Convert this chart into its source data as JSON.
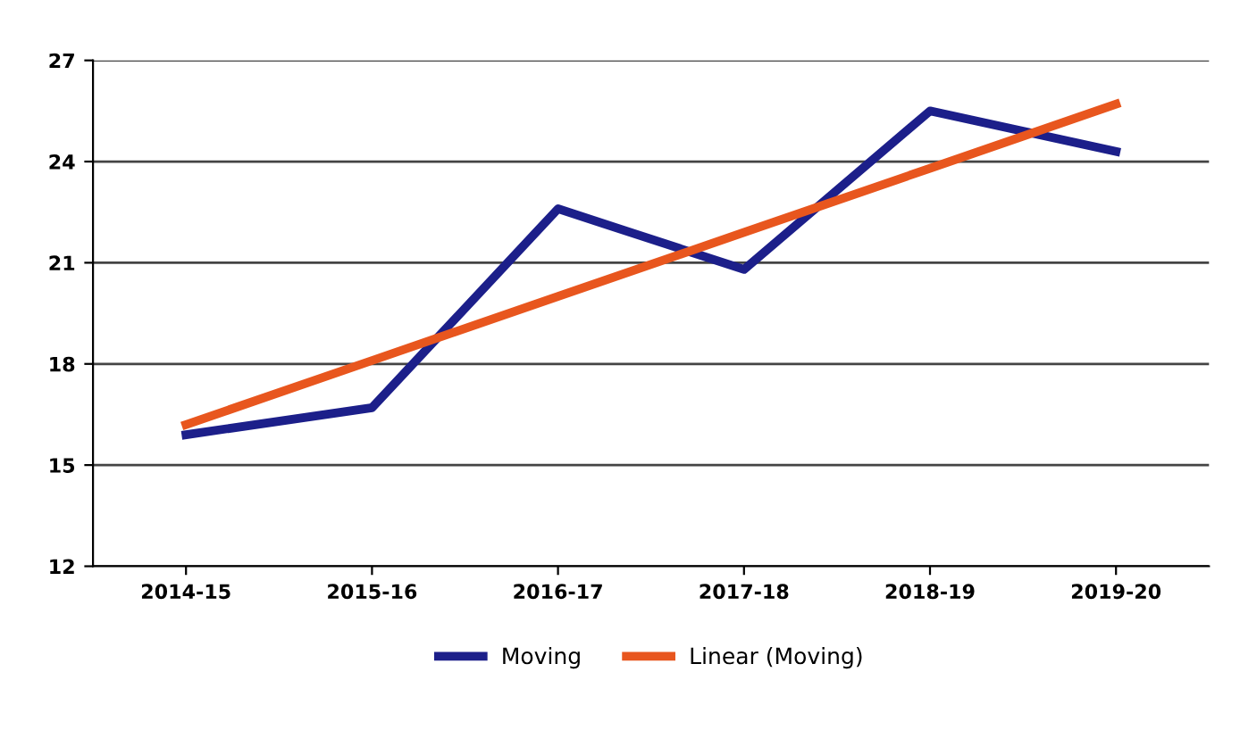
{
  "chart_data": {
    "type": "line",
    "categories": [
      "2014-15",
      "2015-16",
      "2016-17",
      "2017-18",
      "2018-19",
      "2019-20"
    ],
    "series": [
      {
        "name": "Moving",
        "color": "#1c1f8a",
        "values": [
          15.9,
          16.7,
          22.6,
          20.8,
          25.5,
          24.3
        ]
      },
      {
        "name": "Linear (Moving)",
        "color": "#e8561e",
        "values": [
          16.2,
          18.1,
          20.0,
          21.9,
          23.8,
          25.7
        ]
      }
    ],
    "ylim": [
      12,
      27
    ],
    "yticks": [
      12,
      15,
      18,
      21,
      24,
      27
    ],
    "grid": "y",
    "legend": "bottom",
    "marker": "none"
  }
}
